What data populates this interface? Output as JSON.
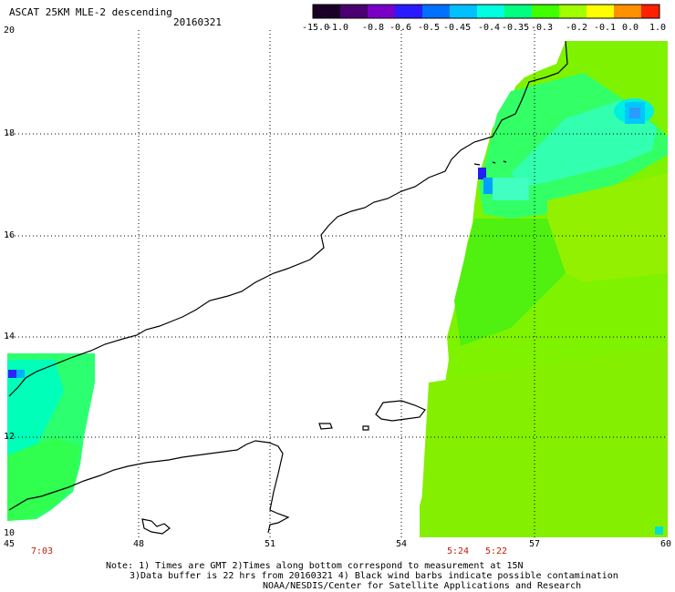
{
  "header": {
    "title": "ASCAT 25KM MLE-2 descending",
    "date": "20160321"
  },
  "colorbar": {
    "labels": [
      "-15.0",
      "-1.0",
      "-0.8",
      "-0.6",
      "-0.5",
      "-0.45",
      "-0.4",
      "-0.35",
      "-0.3",
      "-0.2",
      "-0.1",
      "0.0",
      "1.0"
    ],
    "colors": [
      "#1a0026",
      "#4a0070",
      "#7a00c8",
      "#2a1aff",
      "#0070ff",
      "#00c0ff",
      "#00ffe0",
      "#00ff80",
      "#40ff00",
      "#a0ff00",
      "#ffff00",
      "#ff9000",
      "#ff2000"
    ]
  },
  "axes": {
    "x_ticks": [
      "45",
      "48",
      "51",
      "54",
      "57",
      "60"
    ],
    "y_ticks": [
      "20",
      "18",
      "16",
      "14",
      "12",
      "10"
    ]
  },
  "pass_times": [
    "7:03",
    "5:24",
    "5:22"
  ],
  "notes": {
    "line1": "Note: 1) Times are GMT 2)Times along bottom correspond to measurement at 15N",
    "line2": "3)Data buffer is 22 hrs from 20160321 4) Black wind barbs indicate possible contamination",
    "line3": "NOAA/NESDIS/Center for Satellite Applications and Research"
  }
}
